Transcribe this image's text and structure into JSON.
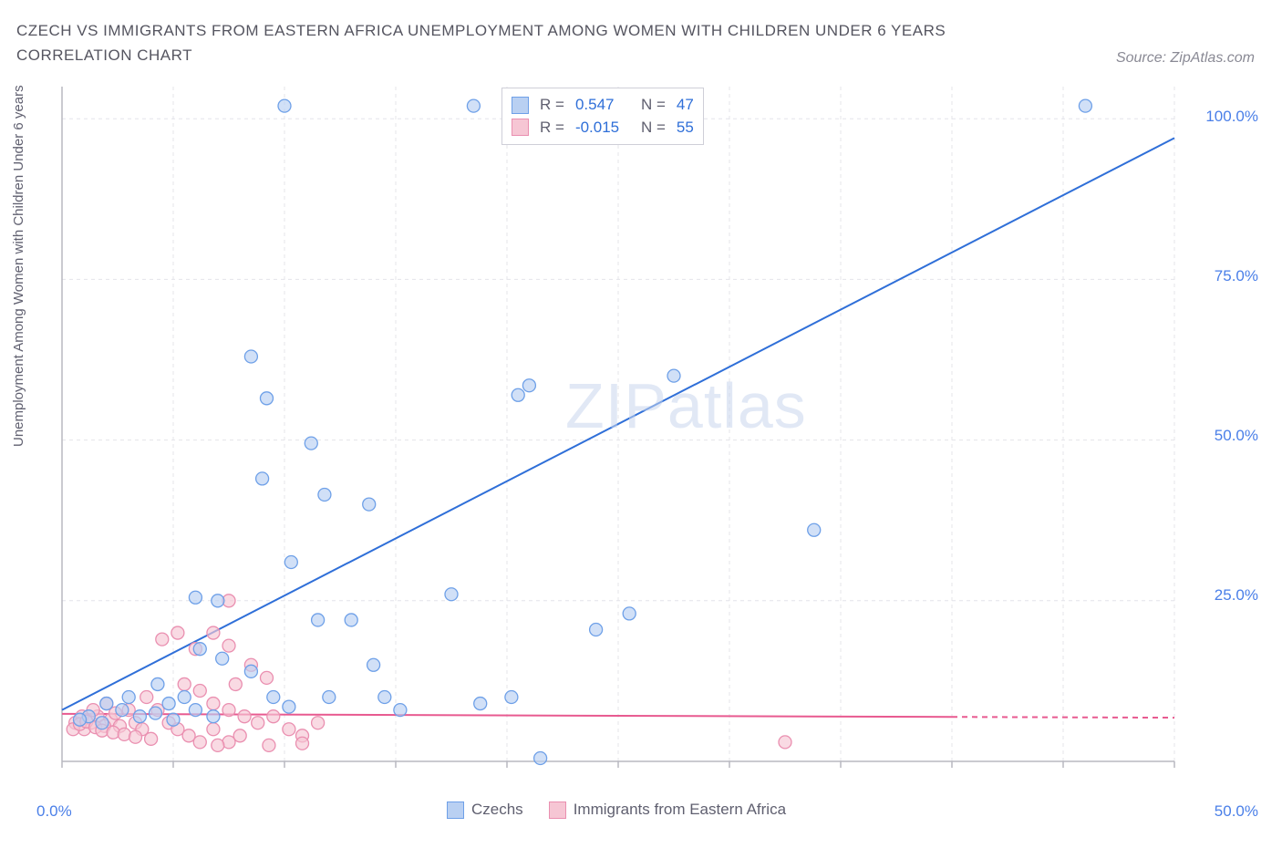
{
  "title_line1": "CZECH VS IMMIGRANTS FROM EASTERN AFRICA UNEMPLOYMENT AMONG WOMEN WITH CHILDREN UNDER 6 YEARS",
  "title_line2": "CORRELATION CHART",
  "source_label": "Source: ZipAtlas.com",
  "ylabel": "Unemployment Among Women with Children Under 6 years",
  "watermark_bold": "ZIP",
  "watermark_thin": "atlas",
  "chart": {
    "type": "scatter-with-regression",
    "x_domain": [
      0,
      50
    ],
    "y_domain": [
      0,
      105
    ],
    "x_ticks": [
      0,
      50
    ],
    "x_tick_labels": [
      "0.0%",
      "50.0%"
    ],
    "y_ticks": [
      25,
      50,
      75,
      100
    ],
    "y_tick_labels": [
      "25.0%",
      "50.0%",
      "75.0%",
      "100.0%"
    ],
    "grid_x_positions": [
      5,
      10,
      15,
      20,
      25,
      30,
      35,
      40,
      45,
      50
    ],
    "grid_color": "#e4e4ea",
    "axis_color": "#b8b8c0",
    "background": "#ffffff",
    "series": [
      {
        "name": "Czechs",
        "color_fill": "#b9d0f2",
        "color_stroke": "#6ea0e8",
        "marker_radius": 7,
        "marker_opacity": 0.65,
        "line_color": "#2f6fd8",
        "line_width": 2,
        "regression": {
          "x1": 0,
          "y1": 8,
          "x2": 50,
          "y2": 97,
          "dash": ""
        },
        "stats": {
          "R": "0.547",
          "N": "47"
        },
        "points": [
          [
            10.0,
            102
          ],
          [
            18.5,
            102
          ],
          [
            46.0,
            102
          ],
          [
            8.5,
            63
          ],
          [
            9.2,
            56.5
          ],
          [
            27.5,
            60
          ],
          [
            20.5,
            57
          ],
          [
            21.0,
            58.5
          ],
          [
            11.2,
            49.5
          ],
          [
            9.0,
            44
          ],
          [
            11.8,
            41.5
          ],
          [
            13.8,
            40
          ],
          [
            10.3,
            31
          ],
          [
            33.8,
            36
          ],
          [
            6.0,
            25.5
          ],
          [
            7.0,
            25
          ],
          [
            17.5,
            26
          ],
          [
            11.5,
            22
          ],
          [
            24.0,
            20.5
          ],
          [
            25.5,
            23
          ],
          [
            4.3,
            12
          ],
          [
            5.5,
            10
          ],
          [
            6.2,
            17.5
          ],
          [
            7.2,
            16
          ],
          [
            8.5,
            14
          ],
          [
            9.5,
            10
          ],
          [
            10.2,
            8.5
          ],
          [
            12.0,
            10
          ],
          [
            13.0,
            22
          ],
          [
            14.5,
            10
          ],
          [
            15.2,
            8
          ],
          [
            18.8,
            9
          ],
          [
            20.2,
            10
          ],
          [
            14.0,
            15
          ],
          [
            2.0,
            9
          ],
          [
            2.7,
            8
          ],
          [
            3.5,
            7
          ],
          [
            4.2,
            7.5
          ],
          [
            5.0,
            6.5
          ],
          [
            6.0,
            8
          ],
          [
            1.2,
            7
          ],
          [
            1.8,
            6
          ],
          [
            0.8,
            6.5
          ],
          [
            3.0,
            10
          ],
          [
            4.8,
            9
          ],
          [
            6.8,
            7
          ],
          [
            21.5,
            0.5
          ]
        ]
      },
      {
        "name": "Immigrants from Eastern Africa",
        "color_fill": "#f6c6d4",
        "color_stroke": "#ea8fb0",
        "marker_radius": 7,
        "marker_opacity": 0.65,
        "line_color": "#e85a90",
        "line_width": 2,
        "regression": {
          "x1": 0,
          "y1": 7.4,
          "x2": 50,
          "y2": 6.8,
          "dash": "6 5",
          "solid_until_x": 40
        },
        "stats": {
          "R": "-0.015",
          "N": "55"
        },
        "points": [
          [
            7.5,
            25
          ],
          [
            4.5,
            19
          ],
          [
            5.2,
            20
          ],
          [
            6.0,
            17.5
          ],
          [
            6.8,
            20
          ],
          [
            7.5,
            18
          ],
          [
            7.8,
            12
          ],
          [
            8.5,
            15
          ],
          [
            9.2,
            13
          ],
          [
            5.5,
            12
          ],
          [
            6.2,
            11
          ],
          [
            6.8,
            9
          ],
          [
            7.5,
            8
          ],
          [
            8.2,
            7
          ],
          [
            8.8,
            6
          ],
          [
            9.5,
            7
          ],
          [
            10.2,
            5
          ],
          [
            10.8,
            4
          ],
          [
            11.5,
            6
          ],
          [
            3.8,
            10
          ],
          [
            4.3,
            8
          ],
          [
            4.8,
            6
          ],
          [
            5.2,
            5
          ],
          [
            5.7,
            4
          ],
          [
            6.2,
            3
          ],
          [
            6.8,
            5
          ],
          [
            7.5,
            3
          ],
          [
            8.0,
            4
          ],
          [
            3.0,
            8
          ],
          [
            3.3,
            6
          ],
          [
            3.6,
            5
          ],
          [
            2.2,
            6.5
          ],
          [
            2.6,
            5.5
          ],
          [
            1.3,
            6
          ],
          [
            1.6,
            7
          ],
          [
            1.9,
            5.5
          ],
          [
            1.0,
            5
          ],
          [
            0.6,
            6
          ],
          [
            0.9,
            7
          ],
          [
            1.4,
            8
          ],
          [
            2.0,
            9
          ],
          [
            2.4,
            7.5
          ],
          [
            0.5,
            5
          ],
          [
            0.8,
            5.8
          ],
          [
            1.1,
            6.2
          ],
          [
            1.5,
            5.3
          ],
          [
            1.8,
            4.8
          ],
          [
            2.3,
            4.5
          ],
          [
            2.8,
            4.2
          ],
          [
            3.3,
            3.8
          ],
          [
            4.0,
            3.5
          ],
          [
            9.3,
            2.5
          ],
          [
            10.8,
            2.8
          ],
          [
            7.0,
            2.5
          ],
          [
            32.5,
            3
          ]
        ]
      }
    ]
  },
  "stats_labels": {
    "R": "R =",
    "N": "N ="
  },
  "legend": {
    "series1": "Czechs",
    "series2": "Immigrants from Eastern Africa"
  }
}
